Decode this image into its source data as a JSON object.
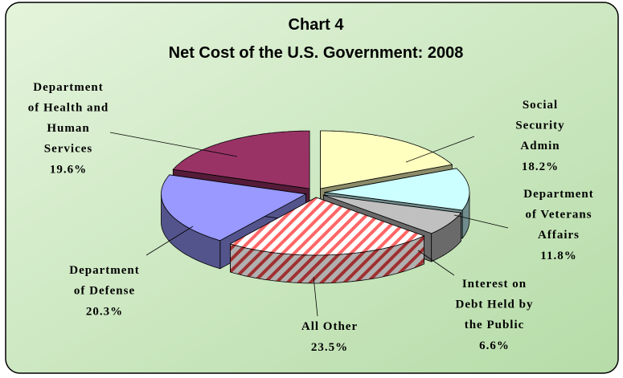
{
  "chart_data": {
    "type": "pie3d",
    "title": "Chart 4",
    "subtitle": "Net Cost of the U.S. Government: 2008",
    "categories": [
      "Social Security Admin",
      "Department of Veterans Affairs",
      "Interest on Debt Held by the Public",
      "All Other",
      "Department of Defense",
      "Department of Health and Human Services"
    ],
    "values": [
      18.2,
      11.8,
      6.6,
      23.5,
      20.3,
      19.6
    ],
    "value_labels": [
      "18.2%",
      "11.8%",
      "6.6%",
      "23.5%",
      "20.3%",
      "19.6%"
    ],
    "colors": [
      "#ffffc0",
      "#ccffff",
      "#c0c0c0",
      "#ff6666",
      "#9999ff",
      "#993366"
    ],
    "hatch": [
      false,
      false,
      false,
      true,
      false,
      false
    ]
  }
}
